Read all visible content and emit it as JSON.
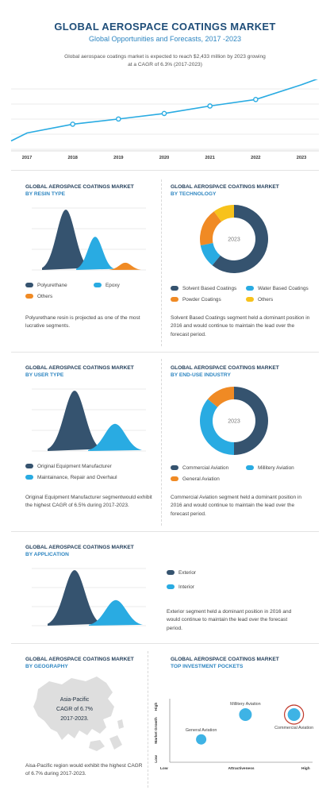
{
  "header": {
    "title": "GLOBAL AEROSPACE COATINGS MARKET",
    "subtitle": "Global Opportunities and Forecasts, 2017 -2023",
    "description": "Global aerospace coatings market is expected to reach $2,433 million by 2023 growing at a CAGR of 6.3% (2017-2023)"
  },
  "colors": {
    "dark_blue": "#35536f",
    "light_blue": "#29abe2",
    "orange": "#f08a24",
    "yellow": "#f7c21b",
    "title_blue": "#1f4e79"
  },
  "sections": {
    "resin": {
      "title": "GLOBAL AEROSPACE COATINGS MARKET",
      "subtitle": "BY RESIN TYPE",
      "legend": [
        "Polyurethane",
        "Epoxy",
        "Others"
      ],
      "note": "Polyurethane resin is projected as one of the most lucrative segments."
    },
    "technology": {
      "title": "GLOBAL AEROSPACE COATINGS MARKET",
      "subtitle": "BY TECHNOLOGY",
      "center_label": "2023",
      "legend": [
        "Solvent Based Coatings",
        "Water Based Coatings",
        "Powder Coatings",
        "Others"
      ],
      "note": "Solvent Based Coatings segment held a dominant position in 2016 and would continue to maintain the lead over the forecast period."
    },
    "user": {
      "title": "GLOBAL AEROSPACE COATINGS MARKET",
      "subtitle": "BY USER TYPE",
      "legend": [
        "Original Equipment Manufacturer",
        "Maintainance, Repair and Overhaul"
      ],
      "note": "Original Equipment Manufacturer segmentwould exhibit the highest CAGR of 6.5% during 2017-2023."
    },
    "enduse": {
      "title": "GLOBAL AEROSPACE COATINGS MARKET",
      "subtitle": "BY END-USE INDUSTRY",
      "center_label": "2023",
      "legend": [
        "Commercial Aviation",
        "Millitery Aviation",
        "General Aviation"
      ],
      "note": "Commercial Aviation segment held a dominant position in 2016 and would continue to maintain the lead over the forecast period."
    },
    "application": {
      "title": "GLOBAL AEROSPACE COATINGS MARKET",
      "subtitle": "BY APPLICATION",
      "legend": [
        "Exterior",
        "Interior"
      ],
      "note": "Exterior segment held a dominant position in 2016 and would continue to maintain the lead over the forecast period."
    },
    "geography": {
      "title": "GLOBAL AEROSPACE COATINGS MARKET",
      "subtitle": "BY GEOGRAPHY",
      "map_label_1": "Asia-Pacific",
      "map_label_2": "CAGR of 6.7%",
      "map_label_3": "2017-2023.",
      "note": "Aisa-Pacific region would exhibit the highest CAGR of 6.7% during 2017-2023."
    },
    "pockets": {
      "title": "GLOBAL AEROSPACE COATINGS MARKET",
      "subtitle": "TOP INVESTMENT POCKETS",
      "y_axis_label": "Market Growth",
      "x_axis_label": "Attractiveness",
      "y_high": "High",
      "y_low": "Low",
      "x_low": "Low",
      "x_high": "High"
    }
  },
  "chart_data": [
    {
      "type": "line",
      "x": [
        "2017",
        "2018",
        "2019",
        "2020",
        "2021",
        "2022",
        "2023"
      ],
      "series": [
        {
          "values": [
            0.95,
            1.22,
            1.38,
            1.55,
            1.78,
            1.98,
            2.433
          ]
        }
      ],
      "ylim": [
        0.4,
        2.5
      ],
      "grid": true
    },
    {
      "type": "area",
      "series": [
        {
          "name": "Polyurethane",
          "peak": 1.0
        },
        {
          "name": "Epoxy",
          "peak": 0.55
        },
        {
          "name": "Others",
          "peak": 0.12
        }
      ]
    },
    {
      "type": "pie",
      "labels": [
        "Solvent Based Coatings",
        "Water Based Coatings",
        "Powder Coatings",
        "Others"
      ],
      "values": [
        61,
        11,
        18,
        10
      ]
    },
    {
      "type": "area",
      "series": [
        {
          "name": "Original Equipment Manufacturer",
          "peak": 1.0
        },
        {
          "name": "Maintainance, Repair and Overhaul",
          "peak": 0.45
        }
      ]
    },
    {
      "type": "pie",
      "labels": [
        "Commercial Aviation",
        "Millitery Aviation",
        "General Aviation"
      ],
      "values": [
        50,
        36,
        14
      ]
    },
    {
      "type": "area",
      "series": [
        {
          "name": "Exterior",
          "peak": 1.0
        },
        {
          "name": "Interior",
          "peak": 0.46
        }
      ]
    },
    {
      "type": "scatter",
      "xlabel": "Attractiveness",
      "ylabel": "Market Growth",
      "points": [
        {
          "name": "General Aviation",
          "x": 0.22,
          "y": 0.36
        },
        {
          "name": "Millitery Aviation",
          "x": 0.53,
          "y": 0.75
        },
        {
          "name": "Commercial Aviation",
          "x": 0.87,
          "y": 0.75
        }
      ]
    }
  ]
}
